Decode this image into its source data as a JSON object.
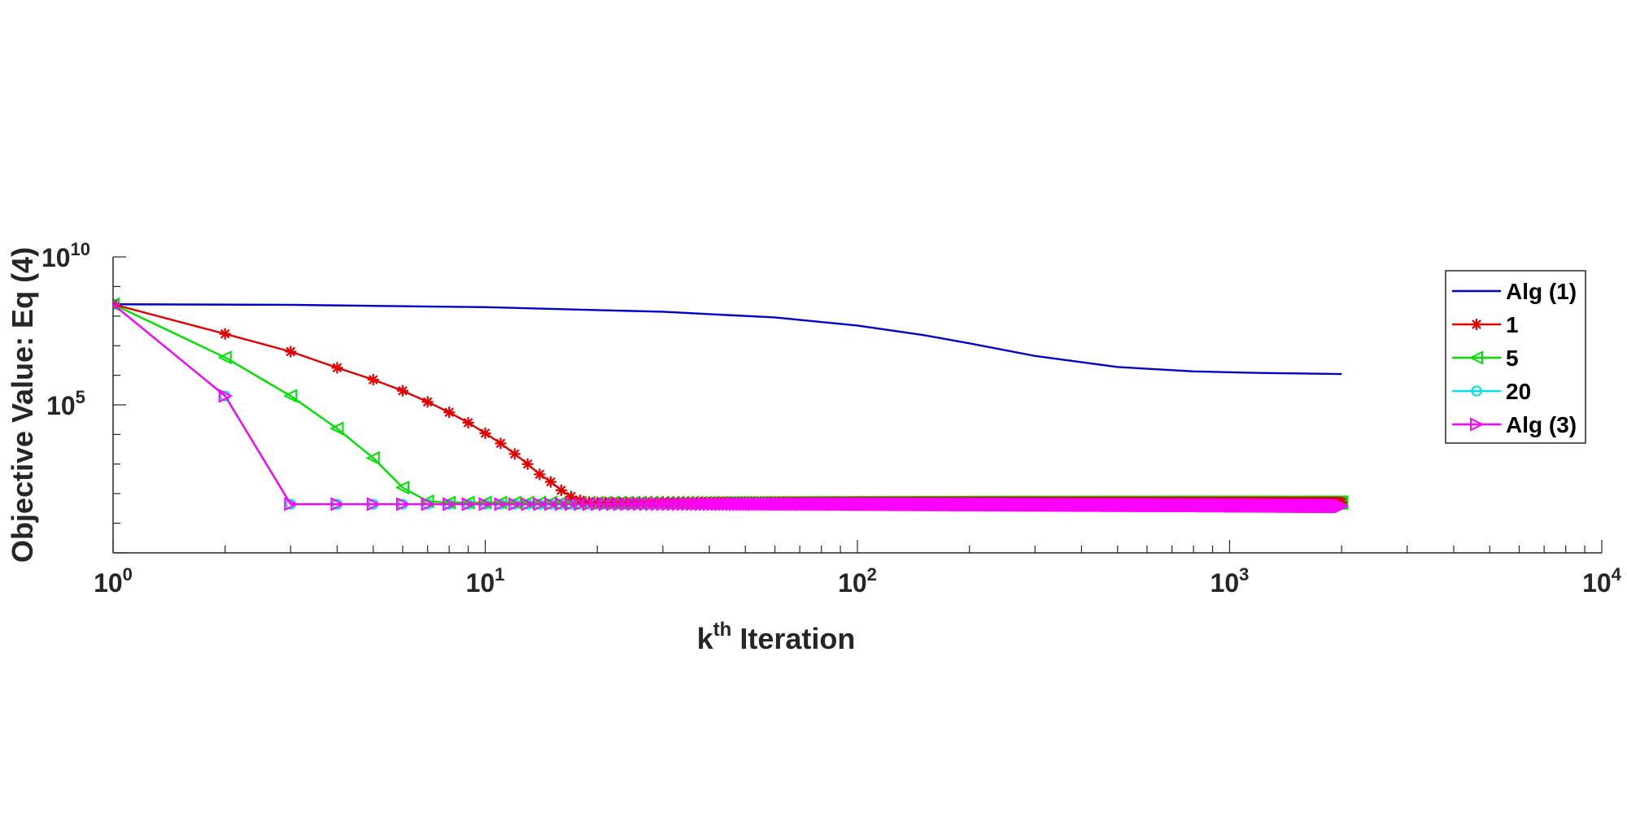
{
  "chart_data": {
    "type": "line",
    "title": "",
    "xscale": "log",
    "yscale": "log",
    "xlim": [
      1,
      10000
    ],
    "ylim": [
      1,
      10000000000
    ],
    "xlabel": {
      "base": "k",
      "sup": "th",
      "rest": " Iteration"
    },
    "ylabel": "Objective Value: Eq (4)",
    "x_ticks": [
      {
        "value": 1,
        "base": "10",
        "exp": "0"
      },
      {
        "value": 10,
        "base": "10",
        "exp": "1"
      },
      {
        "value": 100,
        "base": "10",
        "exp": "2"
      },
      {
        "value": 1000,
        "base": "10",
        "exp": "3"
      },
      {
        "value": 10000,
        "base": "10",
        "exp": "4"
      }
    ],
    "y_ticks": [
      {
        "value": 100000,
        "base": "10",
        "exp": "5"
      },
      {
        "value": 10000000000,
        "base": "10",
        "exp": "10"
      }
    ],
    "grid": false,
    "legend_position": "top-right",
    "series": [
      {
        "name": "Alg (1)",
        "color": "#0000c8",
        "marker": "none",
        "points": [
          [
            1,
            251000000
          ],
          [
            3,
            240000000
          ],
          [
            10,
            200000000
          ],
          [
            30,
            140000000
          ],
          [
            60,
            90000000
          ],
          [
            100,
            48000000
          ],
          [
            150,
            23000000
          ],
          [
            200,
            12000000
          ],
          [
            300,
            4500000
          ],
          [
            500,
            1900000
          ],
          [
            800,
            1350000
          ],
          [
            1200,
            1200000
          ],
          [
            2000,
            1100000
          ]
        ]
      },
      {
        "name": "1",
        "color": "#e00000",
        "marker": "star",
        "points": [
          [
            1,
            251000000
          ],
          [
            2,
            25000000
          ],
          [
            3,
            6300000
          ],
          [
            4,
            1800000
          ],
          [
            5,
            710000
          ],
          [
            6,
            300000
          ],
          [
            7,
            126000
          ],
          [
            8,
            56000
          ],
          [
            9,
            25000
          ],
          [
            10,
            11000
          ],
          [
            11,
            5000
          ],
          [
            12,
            2200
          ],
          [
            13,
            1000
          ],
          [
            14,
            450
          ],
          [
            15,
            250
          ],
          [
            16,
            130
          ],
          [
            17,
            80
          ],
          [
            18,
            60
          ],
          [
            19,
            52
          ],
          [
            20,
            50
          ],
          [
            30,
            50
          ],
          [
            100,
            50
          ],
          [
            500,
            50
          ],
          [
            2000,
            50
          ]
        ]
      },
      {
        "name": "5",
        "color": "#00e000",
        "marker": "triangle-left",
        "points": [
          [
            1,
            251000000
          ],
          [
            2,
            4000000
          ],
          [
            3,
            200000
          ],
          [
            4,
            15800
          ],
          [
            5,
            1600
          ],
          [
            6,
            160
          ],
          [
            7,
            55
          ],
          [
            8,
            50
          ],
          [
            10,
            50
          ],
          [
            50,
            50
          ],
          [
            500,
            50
          ],
          [
            2000,
            50
          ]
        ]
      },
      {
        "name": "20",
        "color": "#00e0e0",
        "marker": "circle",
        "points": [
          [
            1,
            251000000
          ],
          [
            2,
            200000
          ],
          [
            3,
            44
          ],
          [
            10,
            44
          ],
          [
            100,
            44
          ],
          [
            2000,
            44
          ]
        ]
      },
      {
        "name": "Alg (3)",
        "color": "#ff00ff",
        "marker": "triangle-right",
        "points": [
          [
            1,
            251000000
          ],
          [
            2,
            200000
          ],
          [
            3,
            44
          ],
          [
            4,
            44
          ],
          [
            5,
            44
          ],
          [
            10,
            44
          ],
          [
            100,
            44
          ],
          [
            1000,
            40
          ],
          [
            2000,
            38
          ]
        ]
      }
    ]
  }
}
